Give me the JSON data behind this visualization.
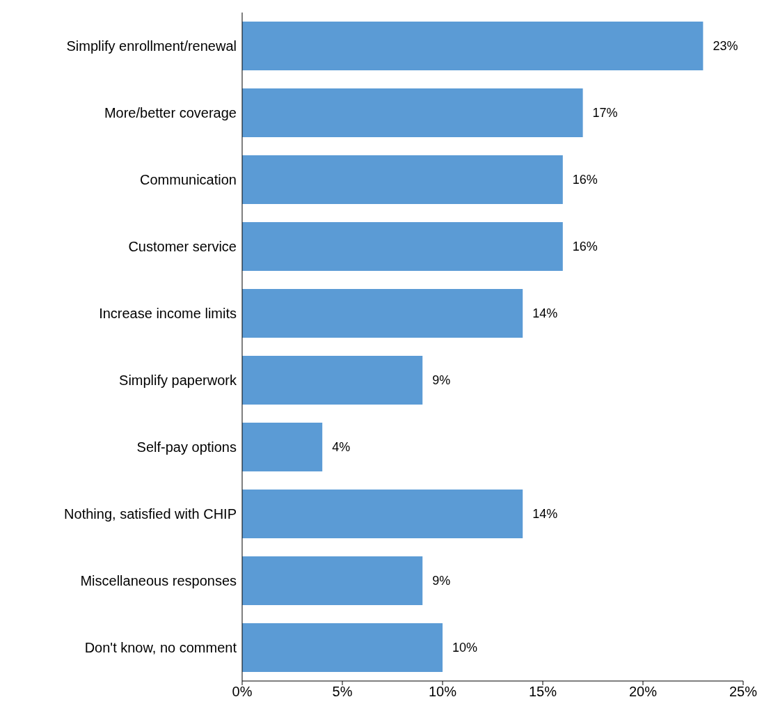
{
  "chart_data": {
    "type": "bar",
    "orientation": "horizontal",
    "categories": [
      "Simplify enrollment/renewal",
      "More/better coverage",
      "Communication",
      "Customer service",
      "Increase income limits",
      "Simplify paperwork",
      "Self-pay options",
      "Nothing, satisfied with CHIP",
      "Miscellaneous responses",
      "Don't know, no comment"
    ],
    "values": [
      23,
      17,
      16,
      16,
      14,
      9,
      4,
      14,
      9,
      10
    ],
    "value_labels": [
      "23%",
      "17%",
      "16%",
      "16%",
      "14%",
      "9%",
      "4%",
      "14%",
      "9%",
      "10%"
    ],
    "color": "#5b9bd5",
    "xlim": [
      0,
      25
    ],
    "xticks": [
      {
        "value": 0,
        "label": "0%"
      },
      {
        "value": 5,
        "label": "5%"
      },
      {
        "value": 10,
        "label": "10%"
      },
      {
        "value": 15,
        "label": "15%"
      },
      {
        "value": 20,
        "label": "20%"
      },
      {
        "value": 25,
        "label": "25%"
      }
    ],
    "grid": false,
    "legend": false
  }
}
